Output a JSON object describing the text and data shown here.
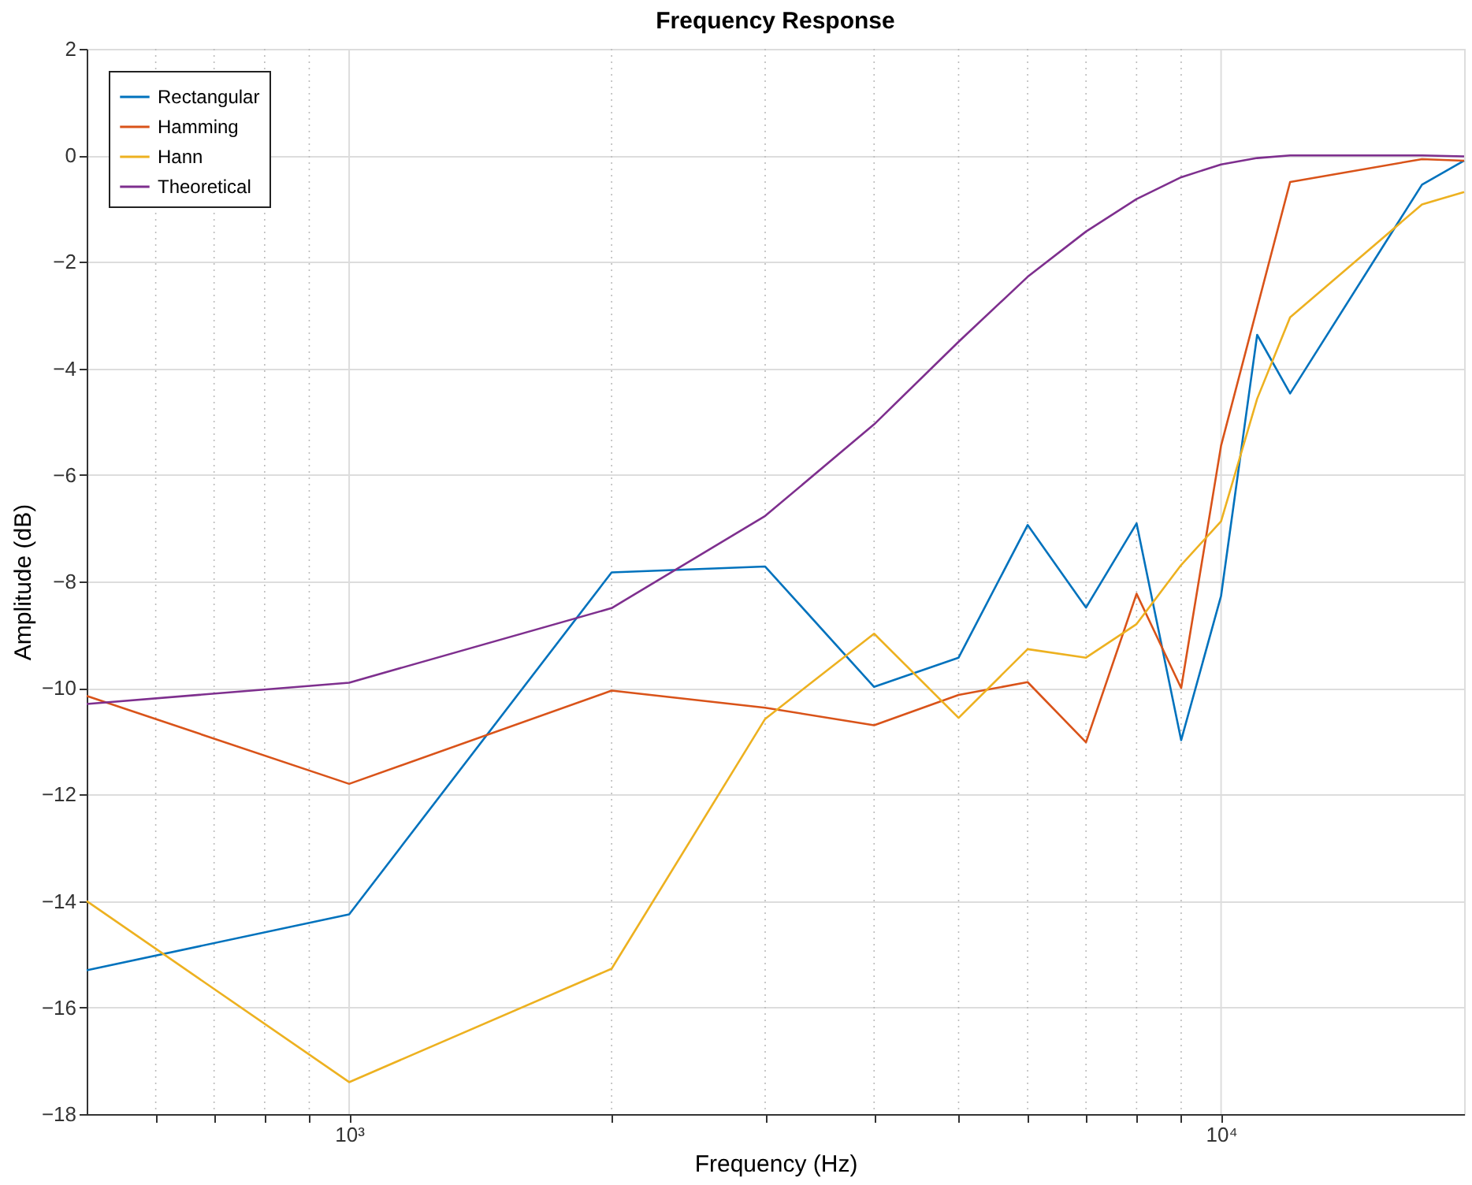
{
  "chart_data": {
    "type": "line",
    "title": "Frequency Response",
    "xlabel": "Frequency (Hz)",
    "ylabel": "Amplitude (dB)",
    "log": "x",
    "grid": true,
    "legend": "top left",
    "line_style": "solid",
    "marker": "none",
    "xlim": [
      500,
      19000
    ],
    "ylim": [
      -18,
      2
    ],
    "xticks": [
      {
        "value": 600,
        "label": null
      },
      {
        "value": 700,
        "label": null
      },
      {
        "value": 800,
        "label": null
      },
      {
        "value": 900,
        "label": null
      },
      {
        "value": 1000,
        "label": "10³"
      },
      {
        "value": 2000,
        "label": null
      },
      {
        "value": 3000,
        "label": null
      },
      {
        "value": 4000,
        "label": null
      },
      {
        "value": 5000,
        "label": null
      },
      {
        "value": 6000,
        "label": null
      },
      {
        "value": 7000,
        "label": null
      },
      {
        "value": 8000,
        "label": null
      },
      {
        "value": 9000,
        "label": null
      },
      {
        "value": 10000,
        "label": "10⁴"
      }
    ],
    "yticks": [
      -18,
      -16,
      -14,
      -12,
      -10,
      -8,
      -6,
      -4,
      -2,
      0,
      2
    ],
    "series": [
      {
        "name": "Rectangular",
        "color": "#0072bd",
        "x": [
          500,
          1000,
          2000,
          3000,
          4000,
          5000,
          6000,
          7000,
          8000,
          9000,
          10000,
          11000,
          12000,
          17000,
          19000
        ],
        "values": [
          -15.3,
          -14.25,
          -7.83,
          -7.72,
          -9.98,
          -9.43,
          -6.94,
          -8.49,
          -6.91,
          -10.98,
          -8.27,
          -3.37,
          -4.47,
          -0.55,
          -0.1
        ]
      },
      {
        "name": "Hamming",
        "color": "#d95319",
        "x": [
          500,
          1000,
          2000,
          3000,
          4000,
          5000,
          6000,
          7000,
          8000,
          9000,
          10000,
          12000,
          17000,
          19000
        ],
        "values": [
          -10.15,
          -11.8,
          -10.05,
          -10.37,
          -10.7,
          -10.13,
          -9.89,
          -11.02,
          -8.23,
          -10.0,
          -5.45,
          -0.5,
          -0.07,
          -0.1
        ]
      },
      {
        "name": "Hann",
        "color": "#edb120",
        "x": [
          500,
          1000,
          2000,
          3000,
          4000,
          5000,
          6000,
          7000,
          8000,
          9000,
          10000,
          11000,
          12000,
          17000,
          19000
        ],
        "values": [
          -14.0,
          -17.4,
          -15.27,
          -10.58,
          -8.98,
          -10.56,
          -9.27,
          -9.43,
          -8.8,
          -7.69,
          -6.87,
          -4.57,
          -3.04,
          -0.92,
          -0.69
        ]
      },
      {
        "name": "Theoretical",
        "color": "#7e2f8e",
        "x": [
          500,
          1000,
          2000,
          3000,
          4000,
          5000,
          6000,
          7000,
          8000,
          9000,
          10000,
          11000,
          12000,
          17000,
          19000
        ],
        "values": [
          -10.3,
          -9.9,
          -8.5,
          -6.77,
          -5.05,
          -3.5,
          -2.28,
          -1.43,
          -0.82,
          -0.41,
          -0.17,
          -0.05,
          0.0,
          0.0,
          -0.02
        ]
      }
    ]
  }
}
